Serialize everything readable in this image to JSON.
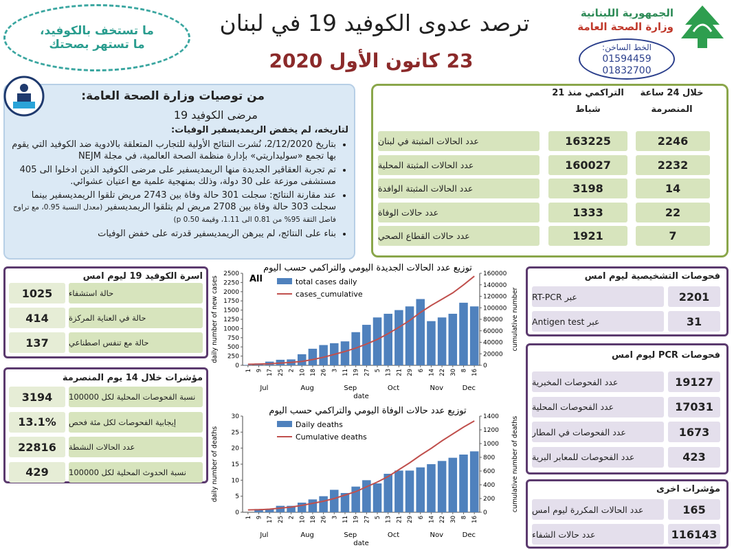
{
  "header": {
    "title": "ترصد عدوى الكوفيد 19 في لبنان",
    "date": "23 كانون الأول 2020",
    "ministry_line1": "الجمهورية اللبنانية",
    "ministry_line2": "وزارة الصحة العامة",
    "hotline_label": "الخط الساخن:",
    "hotline_numbers": [
      "01594459",
      "01832700"
    ],
    "slogan": [
      "ما تستخف بالكوفيد،",
      "ما تستهر بصحتك"
    ]
  },
  "recommendations": {
    "title": "من توصيات وزارة الصحة العامة:",
    "subtitle": "مرضى الكوفيد 19",
    "heading": "لتاريخه، لم يخفض الريمديسفير الوفيات:",
    "bullets": [
      {
        "text": "بتاريخ 2/12/2020، نُشرت النتائج الأولية للتجارب المتعلقة بالادوية ضد الكوفيد التي يقوم بها تجمع «سوليداريتي» بإدارة منظمة الصحة العالمية، في مجلة NEJM"
      },
      {
        "text": "تم تجربة العقاقير الجديدة منها الريمديسفير على مرضى الكوفيد الذين ادخلوا الى 405 مستشفى موزعة على 30 دولة، وذلك بمنهجية علمية مع اعتيان عشوائي."
      },
      {
        "text": "عند مقارنة النتائج: سجلت 301 حالة وفاة بين 2743 مريض تلقوا الريمديسفير بينما سجلت 303 حالة وفاة بين 2708 مريض لم يتلقوا الريمديسفير",
        "note": "(معدل النسبة 0.95، مع تراوح فاصل الثقة 95% من 0.81 الى 1.11، وقيمة p 0.50)"
      },
      {
        "text": "بناء على النتائج، لم يبرهن الريمديسفير قدرته على خفض الوفيات"
      }
    ]
  },
  "summary": {
    "col_24h": "خلال 24 ساعة المنصرمة",
    "col_cumulative": "التراكمي منذ 21 شباط",
    "rows": [
      {
        "label": "عدد الحالات المثبتة في لبنان",
        "cumulative": "163225",
        "last_24h": "2246"
      },
      {
        "label": "عدد الحالات المثبتة المحلية",
        "cumulative": "160027",
        "last_24h": "2232"
      },
      {
        "label": "عدد الحالات المثبتة الوافدة",
        "cumulative": "3198",
        "last_24h": "14"
      },
      {
        "label": "عدد حالات الوفاة",
        "cumulative": "1333",
        "last_24h": "22"
      },
      {
        "label": "عدد حالات القطاع الصحي",
        "cumulative": "1921",
        "last_24h": "7"
      }
    ]
  },
  "beds": {
    "title": "اسرة الكوفيد 19 ليوم امس",
    "rows": [
      {
        "value": "1025",
        "label": "حالة استشفاء"
      },
      {
        "value": "414",
        "label": "حالة في العناية المركزة"
      },
      {
        "value": "137",
        "label": "حالة مع تنفس اصطناعي"
      }
    ]
  },
  "indicators_14d": {
    "title": "مؤشرات خلال 14 يوم المنصرمة",
    "rows": [
      {
        "value": "3194",
        "label": "نسبة الفحوصات المحلية لكل 100000"
      },
      {
        "value": "13.1%",
        "label": "إيجابية الفحوصات لكل مئة فحص"
      },
      {
        "value": "22816",
        "label": "عدد الحالات النشطة"
      },
      {
        "value": "429",
        "label": "نسبة الحدوث المحلية لكل 100000"
      }
    ]
  },
  "diagnostic_tests": {
    "title": "فحوصات التشخيصية ليوم امس",
    "rows": [
      {
        "value": "2201",
        "label": "عبر RT-PCR"
      },
      {
        "value": "31",
        "label": "عبر Antigen test"
      }
    ]
  },
  "pcr_tests": {
    "title": "فحوصات PCR ليوم امس",
    "rows": [
      {
        "value": "19127",
        "label": "عدد الفحوصات المخبرية"
      },
      {
        "value": "17031",
        "label": "عدد الفحوصات المحلية"
      },
      {
        "value": "1673",
        "label": "عدد الفحوصات في المطار"
      },
      {
        "value": "423",
        "label": "عدد الفحوصات للمعابر البرية"
      }
    ]
  },
  "other_indicators": {
    "title": "مؤشرات اخرى",
    "rows": [
      {
        "value": "165",
        "label": "عدد الحالات المكررة ليوم امس"
      },
      {
        "value": "116143",
        "label": "عدد حالات الشفاء"
      }
    ]
  },
  "chart_data": [
    {
      "type": "bar",
      "title": "توزيع عدد الحالات الجديدة اليومي والتراكمي حسب اليوم",
      "annotation": "All",
      "x_label": "date",
      "y_label": "daily number of new cases",
      "y2_label": "cumulative number",
      "categories": [
        "1",
        "9",
        "17",
        "25",
        "2",
        "10",
        "18",
        "26",
        "3",
        "11",
        "19",
        "27",
        "5",
        "13",
        "21",
        "29",
        "6",
        "14",
        "22",
        "30",
        "8",
        "16"
      ],
      "month_labels": [
        "Jul",
        "Aug",
        "Sep",
        "Oct",
        "Nov",
        "Dec"
      ],
      "series": [
        {
          "name": "total cases daily",
          "type": "bar",
          "color": "#4f81bd",
          "values": [
            10,
            50,
            100,
            150,
            160,
            300,
            450,
            550,
            600,
            650,
            900,
            1100,
            1300,
            1400,
            1500,
            1600,
            1800,
            1200,
            1300,
            1400,
            1700,
            1600
          ]
        },
        {
          "name": "cases_cumulative",
          "type": "line",
          "axis": "y2",
          "color": "#c0504d",
          "values": [
            1800,
            2100,
            2800,
            3800,
            5000,
            6700,
            10000,
            14000,
            19000,
            24000,
            30000,
            37000,
            45000,
            55000,
            66000,
            78000,
            92000,
            104000,
            115000,
            126000,
            140000,
            155000
          ]
        }
      ],
      "ylim": [
        0,
        2500
      ],
      "yticks": [
        0,
        250,
        500,
        750,
        1000,
        1250,
        1500,
        1750,
        2000,
        2250,
        2500
      ],
      "y2lim": [
        0,
        160000
      ],
      "y2ticks": [
        0,
        20000,
        40000,
        60000,
        80000,
        100000,
        120000,
        140000,
        160000
      ]
    },
    {
      "type": "bar",
      "title": "توزيع عدد حالات  الوفاة اليومي والتراكمي حسب اليوم",
      "x_label": "date",
      "y_label": "daily number of deaths",
      "y2_label": "cumulative number of deaths",
      "categories": [
        "1",
        "9",
        "17",
        "25",
        "2",
        "10",
        "18",
        "26",
        "3",
        "11",
        "19",
        "27",
        "5",
        "13",
        "21",
        "29",
        "6",
        "14",
        "22",
        "30",
        "8",
        "16"
      ],
      "month_labels": [
        "Jul",
        "Aug",
        "Sep",
        "Oct",
        "Nov",
        "Dec"
      ],
      "series": [
        {
          "name": "Daily deaths",
          "type": "bar",
          "color": "#4f81bd",
          "values": [
            0,
            1,
            1,
            2,
            2,
            3,
            4,
            5,
            7,
            6,
            8,
            10,
            9,
            12,
            13,
            13,
            14,
            15,
            16,
            17,
            18,
            19
          ]
        },
        {
          "name": "Cumulative deaths",
          "type": "line",
          "axis": "y2",
          "color": "#c0504d",
          "values": [
            34,
            37,
            45,
            60,
            75,
            100,
            130,
            160,
            200,
            250,
            300,
            370,
            440,
            520,
            620,
            720,
            830,
            930,
            1040,
            1140,
            1240,
            1330
          ]
        }
      ],
      "ylim": [
        0,
        30
      ],
      "yticks": [
        0,
        5,
        10,
        15,
        20,
        25,
        30
      ],
      "y2lim": [
        0,
        1400
      ],
      "y2ticks": [
        0,
        200,
        400,
        600,
        800,
        1000,
        1200,
        1400
      ]
    }
  ]
}
